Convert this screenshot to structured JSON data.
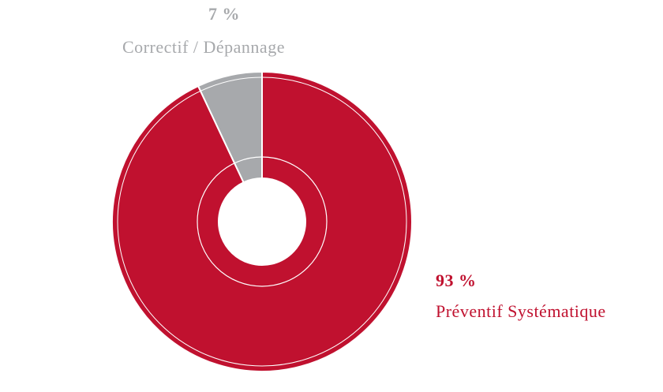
{
  "chart_data": {
    "type": "donut",
    "categories": [
      "Préventif Systématique",
      "Correctif / Dépannage"
    ],
    "values": [
      93,
      7
    ],
    "value_labels": [
      "93 %",
      "7 %"
    ],
    "colors": [
      "#c0112f",
      "#a7a9ac"
    ]
  }
}
